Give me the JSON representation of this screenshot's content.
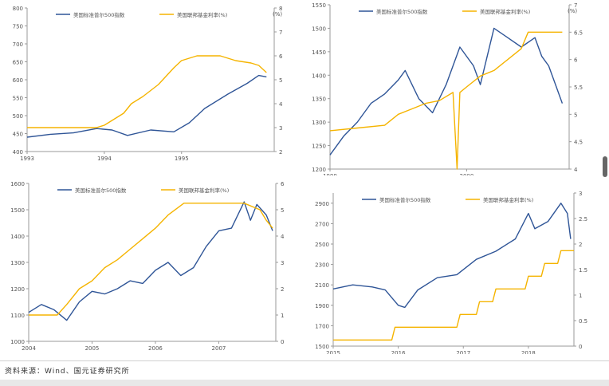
{
  "source_note": "资料来源：Wind、国元证券研究所",
  "colors": {
    "series1": "#2f5597",
    "series2": "#f5b400",
    "axis": "#9a9a9a",
    "text": "#555555"
  },
  "chart_data": [
    {
      "type": "line",
      "legend": [
        "美国标准普尔500指数",
        "美国联邦基金利率(%)"
      ],
      "right_unit": "(%)",
      "xlim": [
        1993,
        1996.2
      ],
      "x_ticks": [
        1993,
        1994,
        1995
      ],
      "x_tick_labels": [
        "1993",
        "1994",
        "1995"
      ],
      "ylim_left": [
        400,
        800
      ],
      "y_ticks_left": [
        400,
        450,
        500,
        550,
        600,
        650,
        700,
        750,
        800
      ],
      "y_tick_labels_left": [
        "400",
        "450",
        "500",
        "550",
        "600",
        "650",
        "700",
        "750",
        "800"
      ],
      "ylim_right": [
        2,
        8
      ],
      "y_ticks_right": [
        2,
        3,
        4,
        5,
        6,
        7,
        8
      ],
      "y_tick_labels_right": [
        "2",
        "3",
        "4",
        "5",
        "6",
        "7",
        "8"
      ],
      "series": [
        {
          "name": "美国标准普尔500指数",
          "axis": "left",
          "x": [
            1993.0,
            1993.3,
            1993.6,
            1993.9,
            1994.1,
            1994.3,
            1994.6,
            1994.9,
            1995.1,
            1995.3,
            1995.6,
            1995.85,
            1996.0,
            1996.1
          ],
          "y": [
            440,
            448,
            452,
            464,
            460,
            445,
            460,
            455,
            480,
            520,
            560,
            590,
            612,
            608
          ]
        },
        {
          "name": "美国联邦基金利率(%)",
          "axis": "right",
          "x": [
            1993.0,
            1993.5,
            1993.9,
            1994.0,
            1994.1,
            1994.25,
            1994.35,
            1994.5,
            1994.7,
            1994.9,
            1995.0,
            1995.2,
            1995.5,
            1995.7,
            1995.9,
            1996.0,
            1996.1
          ],
          "y": [
            3.0,
            3.0,
            3.0,
            3.1,
            3.3,
            3.6,
            4.0,
            4.3,
            4.8,
            5.5,
            5.8,
            6.0,
            6.0,
            5.8,
            5.7,
            5.6,
            5.3
          ]
        }
      ]
    },
    {
      "type": "line",
      "legend": [
        "美国标准普尔500指数",
        "美国联邦基金利率(%)"
      ],
      "right_unit": "(%)",
      "xlim": [
        1999,
        2000.75
      ],
      "x_ticks": [
        1999,
        2000
      ],
      "x_tick_labels": [
        "1999",
        "2000"
      ],
      "ylim_left": [
        1200,
        1550
      ],
      "y_ticks_left": [
        1200,
        1250,
        1300,
        1350,
        1400,
        1450,
        1500,
        1550
      ],
      "y_tick_labels_left": [
        "1200",
        "1250",
        "1300",
        "1350",
        "1400",
        "1450",
        "1500",
        "1550"
      ],
      "ylim_right": [
        4,
        7
      ],
      "y_ticks_right": [
        4,
        4.5,
        5,
        5.5,
        6,
        6.5,
        7
      ],
      "y_tick_labels_right": [
        "4",
        "4.5",
        "5",
        "5.5",
        "6",
        "6.5",
        "7"
      ],
      "series": [
        {
          "name": "美国标准普尔500指数",
          "axis": "left",
          "x": [
            1999.0,
            1999.1,
            1999.2,
            1999.3,
            1999.4,
            1999.5,
            1999.55,
            1999.65,
            1999.75,
            1999.85,
            1999.95,
            2000.05,
            2000.1,
            2000.2,
            2000.3,
            2000.4,
            2000.5,
            2000.55,
            2000.6,
            2000.65,
            2000.7
          ],
          "y": [
            1230,
            1270,
            1300,
            1340,
            1360,
            1390,
            1410,
            1350,
            1320,
            1380,
            1460,
            1420,
            1380,
            1500,
            1480,
            1460,
            1480,
            1440,
            1420,
            1380,
            1340
          ]
        },
        {
          "name": "美国联邦基金利率(%)",
          "axis": "right",
          "x": [
            1999.0,
            1999.2,
            1999.4,
            1999.5,
            1999.6,
            1999.7,
            1999.8,
            1999.9,
            1999.93,
            1999.95,
            2000.0,
            2000.1,
            2000.2,
            2000.3,
            2000.4,
            2000.45,
            2000.5,
            2000.6,
            2000.7
          ],
          "y": [
            4.7,
            4.75,
            4.8,
            5.0,
            5.1,
            5.2,
            5.25,
            5.4,
            4.0,
            5.4,
            5.5,
            5.7,
            5.8,
            6.0,
            6.2,
            6.5,
            6.5,
            6.5,
            6.5
          ]
        }
      ]
    },
    {
      "type": "line",
      "legend": [
        "美国标准普尔500指数",
        "美国联邦基金利率(%)"
      ],
      "right_unit": "",
      "xlim": [
        2004,
        2007.9
      ],
      "x_ticks": [
        2004,
        2005,
        2006,
        2007
      ],
      "x_tick_labels": [
        "2004",
        "2005",
        "2006",
        "2007"
      ],
      "ylim_left": [
        1000,
        1600
      ],
      "y_ticks_left": [
        1000,
        1100,
        1200,
        1300,
        1400,
        1500,
        1600
      ],
      "y_tick_labels_left": [
        "1000",
        "1100",
        "1200",
        "1300",
        "1400",
        "1500",
        "1600"
      ],
      "ylim_right": [
        0,
        6
      ],
      "y_ticks_right": [
        0,
        1,
        2,
        3,
        4,
        5,
        6
      ],
      "y_tick_labels_right": [
        "0",
        "1",
        "2",
        "3",
        "4",
        "5",
        "6"
      ],
      "series": [
        {
          "name": "美国标准普尔500指数",
          "axis": "left",
          "x": [
            2004.0,
            2004.2,
            2004.4,
            2004.6,
            2004.8,
            2005.0,
            2005.2,
            2005.4,
            2005.6,
            2005.8,
            2006.0,
            2006.2,
            2006.4,
            2006.6,
            2006.8,
            2007.0,
            2007.2,
            2007.4,
            2007.5,
            2007.6,
            2007.75,
            2007.85
          ],
          "y": [
            1110,
            1140,
            1120,
            1080,
            1150,
            1190,
            1180,
            1200,
            1230,
            1220,
            1270,
            1300,
            1250,
            1280,
            1360,
            1420,
            1430,
            1530,
            1460,
            1520,
            1480,
            1420
          ]
        },
        {
          "name": "美国联邦基金利率(%)",
          "axis": "right",
          "x": [
            2004.0,
            2004.45,
            2004.6,
            2004.8,
            2005.0,
            2005.2,
            2005.4,
            2005.6,
            2005.8,
            2006.0,
            2006.2,
            2006.45,
            2006.6,
            2006.8,
            2007.0,
            2007.4,
            2007.65,
            2007.75,
            2007.85
          ],
          "y": [
            1.0,
            1.0,
            1.4,
            2.0,
            2.3,
            2.8,
            3.1,
            3.5,
            3.9,
            4.3,
            4.8,
            5.25,
            5.25,
            5.25,
            5.25,
            5.25,
            5.0,
            4.6,
            4.3
          ]
        }
      ]
    },
    {
      "type": "line",
      "legend": [
        "美国标准普尔500指数",
        "美国联邦基金利率(%)"
      ],
      "right_unit": "",
      "xlim": [
        2015,
        2018.7
      ],
      "x_ticks": [
        2015,
        2016,
        2017,
        2018
      ],
      "x_tick_labels": [
        "2015",
        "2016",
        "2017",
        "2018"
      ],
      "ylim_left": [
        1500,
        3000
      ],
      "y_ticks_left": [
        1500,
        1700,
        1900,
        2100,
        2300,
        2500,
        2700,
        2900
      ],
      "y_tick_labels_left": [
        "1500",
        "1700",
        "1900",
        "2100",
        "2300",
        "2500",
        "2700",
        "2900"
      ],
      "ylim_right": [
        0,
        3
      ],
      "y_ticks_right": [
        0,
        0.5,
        1,
        1.5,
        2,
        2.5,
        3
      ],
      "y_tick_labels_right": [
        "0",
        "0.5",
        "1",
        "1.5",
        "2",
        "2.5",
        "3"
      ],
      "series": [
        {
          "name": "美国标准普尔500指数",
          "axis": "left",
          "x": [
            2015.0,
            2015.3,
            2015.6,
            2015.8,
            2016.0,
            2016.1,
            2016.3,
            2016.6,
            2016.9,
            2017.2,
            2017.5,
            2017.8,
            2018.0,
            2018.1,
            2018.3,
            2018.5,
            2018.6,
            2018.65
          ],
          "y": [
            2060,
            2100,
            2080,
            2050,
            1900,
            1880,
            2050,
            2170,
            2200,
            2350,
            2430,
            2550,
            2800,
            2650,
            2720,
            2900,
            2800,
            2550
          ]
        },
        {
          "name": "美国联邦基金利率(%)",
          "axis": "right",
          "x": [
            2015.0,
            2015.9,
            2015.95,
            2016.9,
            2016.95,
            2017.2,
            2017.25,
            2017.45,
            2017.5,
            2017.95,
            2018.0,
            2018.2,
            2018.25,
            2018.45,
            2018.5,
            2018.7
          ],
          "y": [
            0.12,
            0.12,
            0.37,
            0.37,
            0.62,
            0.62,
            0.87,
            0.87,
            1.12,
            1.12,
            1.37,
            1.37,
            1.62,
            1.62,
            1.87,
            1.87
          ]
        }
      ]
    }
  ]
}
